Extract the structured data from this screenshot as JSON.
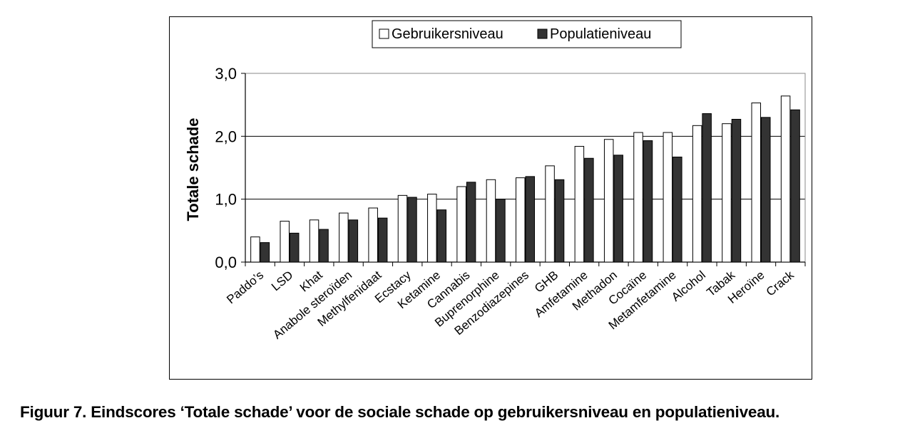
{
  "caption": "Figuur 7. Eindscores ‘Totale schade’ voor de sociale schade op gebruikersniveau en populatieniveau.",
  "chart_data": {
    "type": "bar",
    "title": "",
    "xlabel": "",
    "ylabel": "Totale schade",
    "ylim": [
      0,
      3
    ],
    "yticks": [
      "0,0",
      "1,0",
      "2,0",
      "3,0"
    ],
    "ytick_values": [
      0,
      1,
      2,
      3
    ],
    "grid": true,
    "legend_position": "top",
    "categories": [
      "Paddo’s",
      "LSD",
      "Khat",
      "Anabole steroïden",
      "Methylfenidaat",
      "Ecstacy",
      "Ketamine",
      "Cannabis",
      "Buprenorphine",
      "Benzodiazepines",
      "GHB",
      "Amfetamine",
      "Methadon",
      "Cocaïne",
      "Metamfetamine",
      "Alcohol",
      "Tabak",
      "Heroïne",
      "Crack"
    ],
    "series": [
      {
        "name": "Gebruikersniveau",
        "color": "#ffffff",
        "values": [
          0.4,
          0.65,
          0.67,
          0.78,
          0.86,
          1.06,
          1.08,
          1.2,
          1.31,
          1.34,
          1.53,
          1.84,
          1.95,
          2.06,
          2.06,
          2.17,
          2.2,
          2.53,
          2.64
        ]
      },
      {
        "name": "Populatieniveau",
        "color": "#333333",
        "values": [
          0.31,
          0.46,
          0.52,
          0.67,
          0.7,
          1.03,
          0.83,
          1.27,
          1.0,
          1.36,
          1.31,
          1.65,
          1.7,
          1.93,
          1.67,
          2.36,
          2.27,
          2.3,
          2.42
        ]
      }
    ]
  }
}
